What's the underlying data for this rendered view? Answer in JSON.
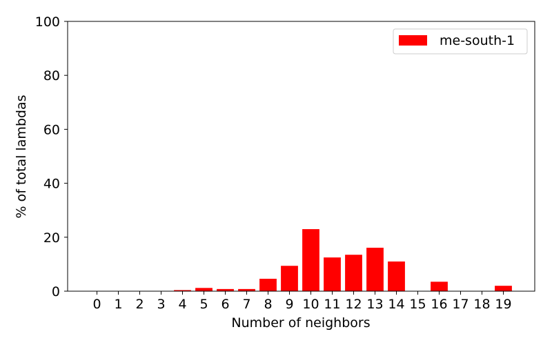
{
  "chart_data": {
    "type": "bar",
    "categories": [
      "0",
      "1",
      "2",
      "3",
      "4",
      "5",
      "6",
      "7",
      "8",
      "9",
      "10",
      "11",
      "12",
      "13",
      "14",
      "15",
      "16",
      "17",
      "18",
      "19"
    ],
    "series": [
      {
        "name": "me-south-1",
        "color": "#ff0000",
        "values": [
          0,
          0,
          0,
          0,
          0.4,
          1.2,
          0.8,
          0.8,
          4.6,
          9.4,
          23.0,
          12.5,
          13.5,
          16.1,
          11.0,
          0,
          3.5,
          0,
          0,
          2.0
        ]
      }
    ],
    "xlabel": "Number of neighbors",
    "ylabel": "% of total lambdas",
    "ylim": [
      0,
      100
    ],
    "yticks": [
      "0",
      "20",
      "40",
      "60",
      "80",
      "100"
    ],
    "legend_position": "top-right",
    "grid": false
  }
}
